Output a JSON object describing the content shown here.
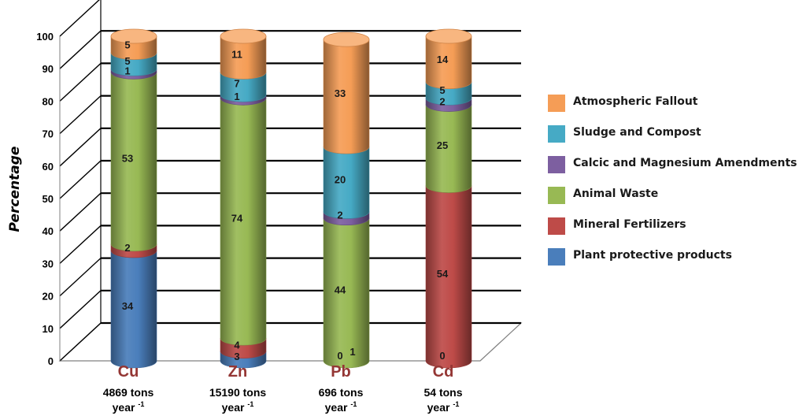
{
  "chart_data": {
    "type": "bar",
    "stacked": true,
    "three_d": true,
    "ylabel": "Percentage",
    "ylim": [
      0,
      100
    ],
    "yticks": [
      0,
      10,
      20,
      30,
      40,
      50,
      60,
      70,
      80,
      90,
      100
    ],
    "grid": true,
    "legend_position": "right",
    "categories": [
      "Cu",
      "Zn",
      "Pb",
      "Cd"
    ],
    "category_notes": [
      {
        "line1": "4869 tons",
        "line2": "year",
        "sup": "-1"
      },
      {
        "line1": "15190 tons",
        "line2": "year",
        "sup": "-1"
      },
      {
        "line1": "696 tons",
        "line2": "year",
        "sup": "-1"
      },
      {
        "line1": "54 tons",
        "line2": "year",
        "sup": "-1"
      }
    ],
    "series": [
      {
        "name": "Plant protective products",
        "color": "#4a7ebb",
        "values": [
          34,
          3,
          0,
          0
        ]
      },
      {
        "name": "Mineral Fertilizers",
        "color": "#be4b48",
        "values": [
          2,
          4,
          0,
          54
        ]
      },
      {
        "name": "Animal Waste",
        "color": "#98b954",
        "values": [
          53,
          74,
          44,
          25
        ]
      },
      {
        "name": "Calcic and Magnesium Amendments",
        "color": "#7d5fa0",
        "values": [
          1,
          1,
          2,
          2
        ]
      },
      {
        "name": "Sludge and Compost",
        "color": "#46aac5",
        "values": [
          5,
          7,
          20,
          5
        ]
      },
      {
        "name": "Atmospheric Fallout",
        "color": "#f59d56",
        "values": [
          5,
          11,
          33,
          14
        ]
      }
    ],
    "data_labels": [
      [
        "34",
        "2",
        "53",
        "1",
        "5",
        "5"
      ],
      [
        "3",
        "4",
        "74",
        "1",
        "7",
        "11"
      ],
      [
        "0",
        "",
        "44",
        "2",
        "20",
        "33"
      ],
      [
        "0",
        "54",
        "25",
        "2",
        "5",
        "14"
      ]
    ],
    "extra_labels": [
      {
        "category": "Pb",
        "text": "1"
      }
    ],
    "category_label_color": "#943634"
  }
}
